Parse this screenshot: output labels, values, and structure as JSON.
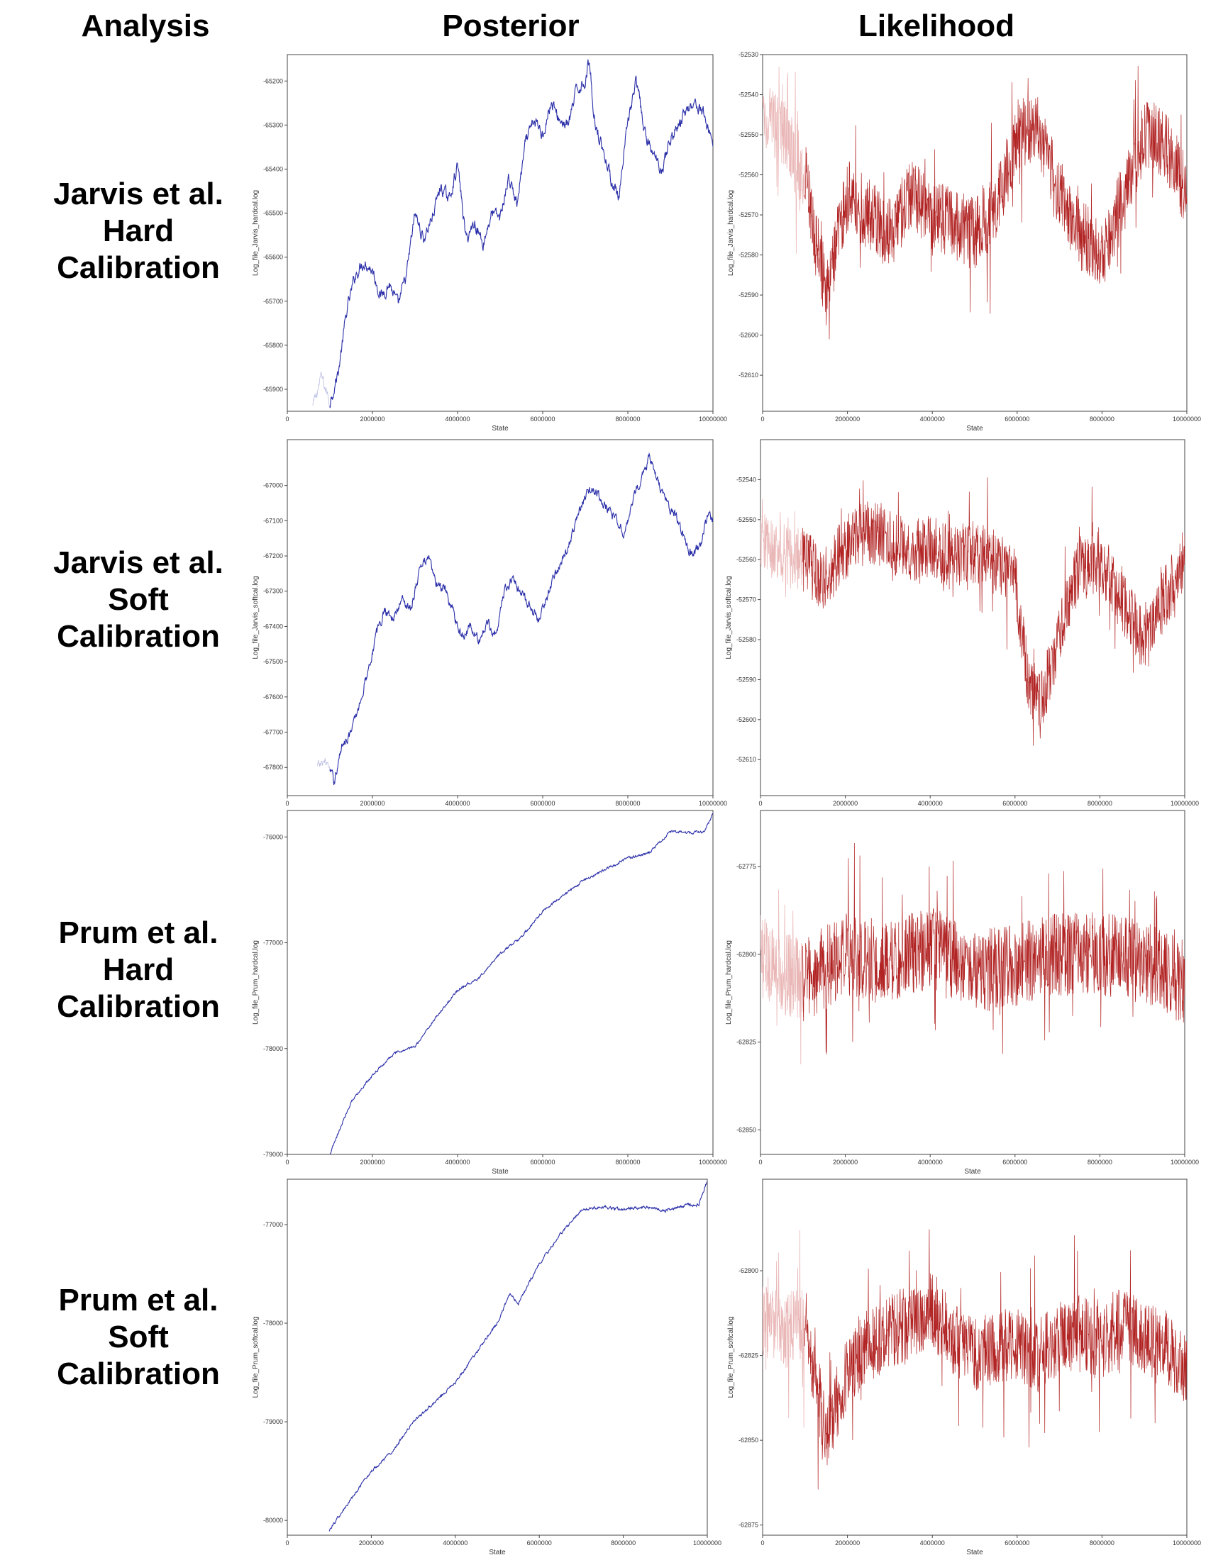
{
  "headers": {
    "analysis": "Analysis",
    "posterior": "Posterior",
    "likelihood": "Likelihood"
  },
  "rows": [
    {
      "label_lines": [
        "Jarvis et al.",
        "Hard",
        "Calibration"
      ]
    },
    {
      "label_lines": [
        "Jarvis et al.",
        "Soft",
        "Calibration"
      ]
    },
    {
      "label_lines": [
        "Prum et al.",
        "Hard",
        "Calibration"
      ]
    },
    {
      "label_lines": [
        "Prum et al.",
        "Soft",
        "Calibration"
      ]
    }
  ],
  "colors": {
    "posterior": "#2b2fa8",
    "likelihood": "#b22424",
    "burnin_posterior": "#b9bde0",
    "burnin_likelihood": "#eab7b7"
  },
  "chart_data": [
    {
      "type": "line",
      "row": 0,
      "column": "Posterior",
      "xlabel": "State",
      "ylabel": "Log_file_Jarvis_hardcal.log",
      "xlim": [
        0,
        10000000
      ],
      "ylim": [
        -65950,
        -65140
      ],
      "xticks": [
        0,
        2000000,
        4000000,
        6000000,
        8000000,
        10000000
      ],
      "xtick_labels": [
        "0",
        "2000000",
        "4000000",
        "6000000",
        "8000000",
        "10000000"
      ],
      "yticks": [
        -65200,
        -65300,
        -65400,
        -65500,
        -65600,
        -65700,
        -65800,
        -65900
      ],
      "ytick_labels": [
        "-65200",
        "-65300",
        "-65400",
        "-65500",
        "-65600",
        "-65700",
        "-65800",
        "-65900"
      ],
      "burnin_end": 1000000,
      "x": [
        600000,
        800000,
        1000000,
        1200000,
        1400000,
        1600000,
        1800000,
        2000000,
        2200000,
        2400000,
        2600000,
        2800000,
        3000000,
        3200000,
        3400000,
        3600000,
        3800000,
        4000000,
        4200000,
        4400000,
        4600000,
        4800000,
        5000000,
        5200000,
        5400000,
        5600000,
        5800000,
        6000000,
        6200000,
        6400000,
        6600000,
        6800000,
        7000000,
        7100000,
        7200000,
        7400000,
        7600000,
        7800000,
        8000000,
        8200000,
        8400000,
        8600000,
        8800000,
        9000000,
        9200000,
        9400000,
        9600000,
        9800000,
        10000000
      ],
      "y": [
        -65940,
        -65870,
        -65930,
        -65860,
        -65720,
        -65640,
        -65610,
        -65630,
        -65690,
        -65660,
        -65710,
        -65640,
        -65500,
        -65560,
        -65510,
        -65440,
        -65470,
        -65390,
        -65560,
        -65520,
        -65570,
        -65500,
        -65510,
        -65420,
        -65480,
        -65340,
        -65290,
        -65320,
        -65250,
        -65290,
        -65300,
        -65220,
        -65200,
        -65150,
        -65280,
        -65350,
        -65420,
        -65470,
        -65290,
        -65200,
        -65320,
        -65370,
        -65400,
        -65330,
        -65300,
        -65260,
        -65250,
        -65280,
        -65340
      ],
      "noise": 14
    },
    {
      "type": "line",
      "row": 0,
      "column": "Likelihood",
      "xlabel": "State",
      "ylabel": "Log_file_Jarvis_hardcal.log",
      "xlim": [
        0,
        10000000
      ],
      "ylim": [
        -52619,
        -52530
      ],
      "xticks": [
        0,
        2000000,
        4000000,
        6000000,
        8000000,
        10000000
      ],
      "xtick_labels": [
        "0",
        "2000000",
        "4000000",
        "6000000",
        "8000000",
        "10000000"
      ],
      "yticks": [
        -52530,
        -52540,
        -52550,
        -52560,
        -52570,
        -52580,
        -52590,
        -52600,
        -52610
      ],
      "ytick_labels": [
        "-52530",
        "-52540",
        "-52550",
        "-52560",
        "-52570",
        "-52580",
        "-52590",
        "-52600",
        "-52610"
      ],
      "burnin_end": 1000000,
      "x": [
        0,
        500000,
        1000000,
        1500000,
        2000000,
        2500000,
        3000000,
        3500000,
        4000000,
        4500000,
        5000000,
        5500000,
        6000000,
        6500000,
        7000000,
        7500000,
        8000000,
        8500000,
        9000000,
        9500000,
        10000000
      ],
      "y": [
        -52545,
        -52550,
        -52560,
        -52590,
        -52565,
        -52570,
        -52575,
        -52565,
        -52570,
        -52572,
        -52575,
        -52568,
        -52550,
        -52548,
        -52565,
        -52575,
        -52580,
        -52565,
        -52550,
        -52552,
        -52565
      ],
      "noise": 9
    },
    {
      "type": "line",
      "row": 1,
      "column": "Posterior",
      "xlabel": "",
      "ylabel": "Log_file_Jarvis_softcal.log",
      "xlim": [
        0,
        10000000
      ],
      "ylim": [
        -67880,
        -66870
      ],
      "xticks": [
        0,
        2000000,
        4000000,
        6000000,
        8000000,
        10000000
      ],
      "xtick_labels": [
        "0",
        "2000000",
        "4000000",
        "6000000",
        "8000000",
        "10000000"
      ],
      "yticks": [
        -67000,
        -67100,
        -67200,
        -67300,
        -67400,
        -67500,
        -67600,
        -67700,
        -67800
      ],
      "ytick_labels": [
        "-67000",
        "-67100",
        "-67200",
        "-67300",
        "-67400",
        "-67500",
        "-67600",
        "-67700",
        "-67800"
      ],
      "burnin_end": 1000000,
      "x": [
        700000,
        900000,
        1100000,
        1300000,
        1500000,
        1700000,
        1900000,
        2100000,
        2300000,
        2500000,
        2700000,
        2900000,
        3100000,
        3300000,
        3500000,
        3700000,
        3900000,
        4100000,
        4300000,
        4500000,
        4700000,
        4900000,
        5100000,
        5300000,
        5500000,
        5700000,
        5900000,
        6100000,
        6300000,
        6500000,
        6700000,
        6900000,
        7100000,
        7300000,
        7500000,
        7700000,
        7900000,
        8100000,
        8300000,
        8500000,
        8700000,
        8900000,
        9100000,
        9300000,
        9500000,
        9700000,
        9900000,
        10000000
      ],
      "y": [
        -67800,
        -67780,
        -67840,
        -67730,
        -67700,
        -67620,
        -67520,
        -67420,
        -67350,
        -67380,
        -67320,
        -67350,
        -67240,
        -67200,
        -67280,
        -67300,
        -67360,
        -67430,
        -67400,
        -67440,
        -67390,
        -67420,
        -67300,
        -67260,
        -67310,
        -67340,
        -67380,
        -67320,
        -67250,
        -67200,
        -67140,
        -67060,
        -67010,
        -67030,
        -67060,
        -67100,
        -67130,
        -67060,
        -66980,
        -66920,
        -66990,
        -67050,
        -67080,
        -67140,
        -67200,
        -67170,
        -67080,
        -67100
      ],
      "noise": 14
    },
    {
      "type": "line",
      "row": 1,
      "column": "Likelihood",
      "xlabel": "",
      "ylabel": "Log_file_Jarvis_softcal.log",
      "xlim": [
        0,
        10000000
      ],
      "ylim": [
        -52619,
        -52530
      ],
      "xticks": [
        0,
        2000000,
        4000000,
        6000000,
        8000000,
        10000000
      ],
      "xtick_labels": [
        "0",
        "2000000",
        "4000000",
        "6000000",
        "8000000",
        "10000000"
      ],
      "yticks": [
        -52540,
        -52550,
        -52560,
        -52570,
        -52580,
        -52590,
        -52600,
        -52610
      ],
      "ytick_labels": [
        "-52540",
        "-52550",
        "-52560",
        "-52570",
        "-52580",
        "-52590",
        "-52600",
        "-52610"
      ],
      "burnin_end": 1000000,
      "x": [
        0,
        500000,
        1000000,
        1500000,
        2000000,
        2500000,
        3000000,
        3500000,
        4000000,
        4500000,
        5000000,
        5500000,
        6000000,
        6300000,
        6600000,
        7000000,
        7500000,
        8000000,
        8500000,
        9000000,
        9500000,
        10000000
      ],
      "y": [
        -52555,
        -52558,
        -52560,
        -52565,
        -52557,
        -52553,
        -52555,
        -52558,
        -52556,
        -52560,
        -52558,
        -52560,
        -52565,
        -52590,
        -52597,
        -52580,
        -52562,
        -52560,
        -52570,
        -52580,
        -52570,
        -52560
      ],
      "noise": 8
    },
    {
      "type": "line",
      "row": 2,
      "column": "Posterior",
      "xlabel": "State",
      "ylabel": "Log_file_Prum_hardcal.log",
      "xlim": [
        0,
        10000000
      ],
      "ylim": [
        -79000,
        -75750
      ],
      "xticks": [
        0,
        2000000,
        4000000,
        6000000,
        8000000,
        10000000
      ],
      "xtick_labels": [
        "0",
        "2000000",
        "4000000",
        "6000000",
        "8000000",
        "10000000"
      ],
      "yticks": [
        -76000,
        -77000,
        -78000,
        -79000
      ],
      "ytick_labels": [
        "-76000",
        "-77000",
        "-78000",
        "-79000"
      ],
      "burnin_end": 1000000,
      "x": [
        1000000,
        1500000,
        2000000,
        2500000,
        3000000,
        3500000,
        4000000,
        4500000,
        5000000,
        5500000,
        6000000,
        6500000,
        7000000,
        7500000,
        8000000,
        8500000,
        9000000,
        9500000,
        9800000,
        10000000
      ],
      "y": [
        -79000,
        -78500,
        -78250,
        -78050,
        -77980,
        -77700,
        -77450,
        -77330,
        -77100,
        -76950,
        -76700,
        -76550,
        -76400,
        -76300,
        -76200,
        -76150,
        -75950,
        -75960,
        -75950,
        -75780
      ],
      "noise": 12
    },
    {
      "type": "line",
      "row": 2,
      "column": "Likelihood",
      "xlabel": "State",
      "ylabel": "Log_file_Prum_hardcal.log",
      "xlim": [
        0,
        10000000
      ],
      "ylim": [
        -62857,
        -62759
      ],
      "xticks": [
        0,
        2000000,
        4000000,
        6000000,
        8000000,
        10000000
      ],
      "xtick_labels": [
        "0",
        "2000000",
        "4000000",
        "6000000",
        "8000000",
        "10000000"
      ],
      "yticks": [
        -62775,
        -62800,
        -62825,
        -62850
      ],
      "ytick_labels": [
        "-62775",
        "-62800",
        "-62825",
        "-62850"
      ],
      "burnin_end": 1000000,
      "x": [
        0,
        500000,
        1000000,
        2000000,
        3000000,
        4000000,
        5000000,
        6000000,
        7000000,
        8000000,
        9000000,
        10000000
      ],
      "y": [
        -62800,
        -62805,
        -62808,
        -62800,
        -62802,
        -62798,
        -62805,
        -62803,
        -62800,
        -62800,
        -62802,
        -62808
      ],
      "noise": 12
    },
    {
      "type": "line",
      "row": 3,
      "column": "Posterior",
      "xlabel": "State",
      "ylabel": "Log_file_Prum_softcal.log",
      "xlim": [
        0,
        10000000
      ],
      "ylim": [
        -80150,
        -76540
      ],
      "xticks": [
        0,
        2000000,
        4000000,
        6000000,
        8000000,
        10000000
      ],
      "xtick_labels": [
        "0",
        "2000000",
        "4000000",
        "6000000",
        "8000000",
        "10000000"
      ],
      "yticks": [
        -77000,
        -78000,
        -79000,
        -80000
      ],
      "ytick_labels": [
        "-77000",
        "-78000",
        "-79000",
        "-80000"
      ],
      "burnin_end": 1000000,
      "x": [
        1000000,
        1500000,
        2000000,
        2500000,
        3000000,
        3500000,
        4000000,
        4500000,
        5000000,
        5300000,
        5500000,
        6000000,
        6500000,
        7000000,
        7500000,
        8000000,
        8500000,
        9000000,
        9500000,
        9800000,
        10000000
      ],
      "y": [
        -80100,
        -79800,
        -79500,
        -79300,
        -79000,
        -78800,
        -78600,
        -78300,
        -78000,
        -77700,
        -77800,
        -77400,
        -77100,
        -76860,
        -76820,
        -76850,
        -76820,
        -76860,
        -76800,
        -76800,
        -76550
      ],
      "noise": 14
    },
    {
      "type": "line",
      "row": 3,
      "column": "Likelihood",
      "xlabel": "State",
      "ylabel": "Log_file_Prum_softcal.log",
      "xlim": [
        0,
        10000000
      ],
      "ylim": [
        -62878,
        -62773
      ],
      "xticks": [
        0,
        2000000,
        4000000,
        6000000,
        8000000,
        10000000
      ],
      "xtick_labels": [
        "0",
        "2000000",
        "4000000",
        "6000000",
        "8000000",
        "10000000"
      ],
      "yticks": [
        -62800,
        -62825,
        -62850,
        -62875
      ],
      "ytick_labels": [
        "-62800",
        "-62825",
        "-62850",
        "-62875"
      ],
      "burnin_end": 1000000,
      "x": [
        0,
        500000,
        1000000,
        1500000,
        2000000,
        2500000,
        3000000,
        3500000,
        4000000,
        4500000,
        5000000,
        5500000,
        6000000,
        6500000,
        7000000,
        7500000,
        8000000,
        8500000,
        9000000,
        9500000,
        10000000
      ],
      "y": [
        -62815,
        -62818,
        -62815,
        -62848,
        -62830,
        -62822,
        -62818,
        -62815,
        -62812,
        -62820,
        -62825,
        -62822,
        -62822,
        -62825,
        -62820,
        -62818,
        -62822,
        -62815,
        -62820,
        -62822,
        -62830
      ],
      "noise": 11
    }
  ]
}
